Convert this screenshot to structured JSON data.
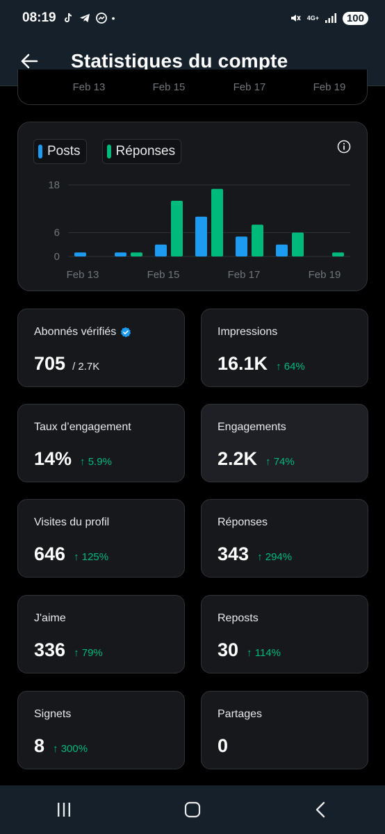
{
  "status_bar": {
    "time": "08:19",
    "battery": "100",
    "network": "4G+"
  },
  "header": {
    "title": "Statistiques du compte"
  },
  "top_card": {
    "ticks": [
      "Feb 13",
      "Feb 15",
      "Feb 17",
      "Feb 19"
    ]
  },
  "legend": {
    "posts_label": "Posts",
    "replies_label": "Réponses",
    "posts_color": "#1d9bf0",
    "replies_color": "#00ba7c"
  },
  "chart_data": {
    "type": "bar",
    "categories": [
      "Feb 13",
      "Feb 14",
      "Feb 15",
      "Feb 16",
      "Feb 17",
      "Feb 18",
      "Feb 19"
    ],
    "series": [
      {
        "name": "Posts",
        "values": [
          1,
          1,
          3,
          10,
          5,
          3,
          0
        ]
      },
      {
        "name": "Réponses",
        "values": [
          0,
          1,
          14,
          17,
          8,
          6,
          1
        ]
      }
    ],
    "y_ticks": [
      "18",
      "6",
      "0"
    ],
    "x_ticks": [
      "Feb 13",
      "Feb 15",
      "Feb 17",
      "Feb 19"
    ],
    "ylim": [
      0,
      18
    ],
    "grid": true,
    "legend": "top-left"
  },
  "stats": [
    {
      "label": "Abonnés vérifiés",
      "value": "705",
      "sub": "/ 2.7K",
      "change": "",
      "verified": true
    },
    {
      "label": "Impressions",
      "value": "16.1K",
      "sub": "",
      "change": "↑ 64%"
    },
    {
      "label": "Taux d’engagement",
      "value": "14%",
      "sub": "",
      "change": "↑ 5.9%"
    },
    {
      "label": "Engagements",
      "value": "2.2K",
      "sub": "",
      "change": "↑ 74%"
    },
    {
      "label": "Visites du profil",
      "value": "646",
      "sub": "",
      "change": "↑ 125%"
    },
    {
      "label": "Réponses",
      "value": "343",
      "sub": "",
      "change": "↑ 294%"
    },
    {
      "label": "J'aime",
      "value": "336",
      "sub": "",
      "change": "↑ 79%"
    },
    {
      "label": "Reposts",
      "value": "30",
      "sub": "",
      "change": "↑ 114%"
    },
    {
      "label": "Signets",
      "value": "8",
      "sub": "",
      "change": "↑ 300%"
    },
    {
      "label": "Partages",
      "value": "0",
      "sub": "",
      "change": ""
    }
  ],
  "icons": {
    "back": "arrow-left-icon",
    "info": "info-icon",
    "verified": "verified-badge-icon",
    "nav_recents": "recents-icon",
    "nav_home": "home-icon",
    "nav_back": "chevron-back-icon"
  }
}
